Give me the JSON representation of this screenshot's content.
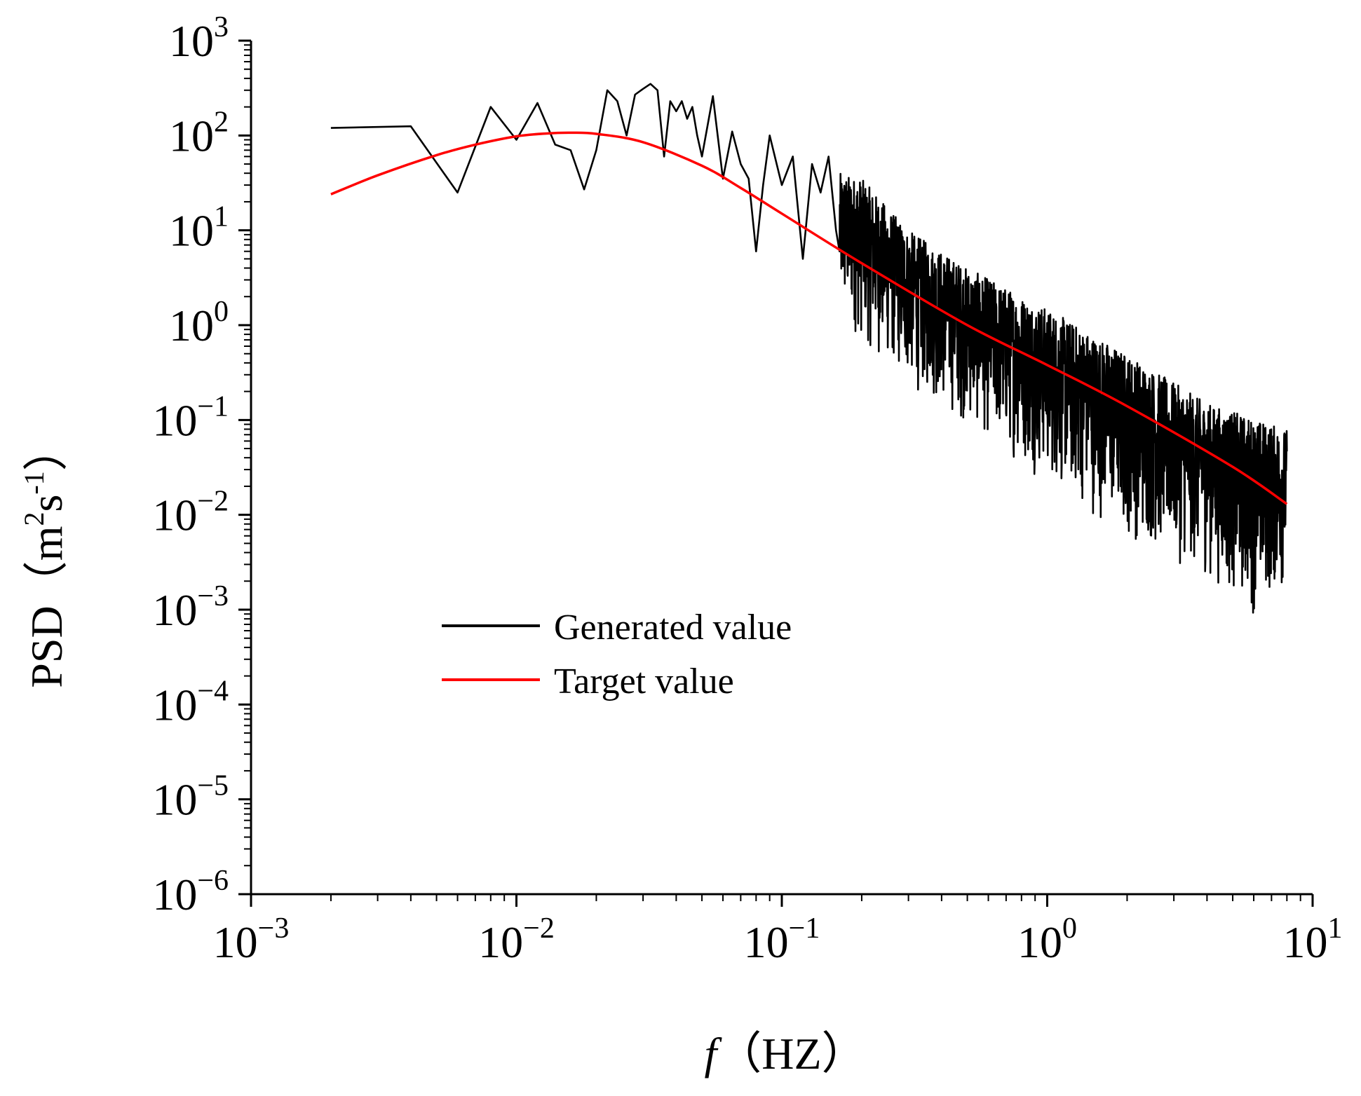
{
  "chart_data": {
    "type": "line",
    "xlabel": {
      "italic": "f",
      "rest": "（HZ）"
    },
    "ylabel": {
      "main": "PSD（m",
      "sup1": "2",
      "mid": "s",
      "sup2": "-1",
      "end": "）"
    },
    "xscale": "log",
    "yscale": "log",
    "xlim": [
      0.001,
      10
    ],
    "ylim": [
      1e-06,
      1000
    ],
    "x_ticks": [
      {
        "base": "10",
        "exp": "−3"
      },
      {
        "base": "10",
        "exp": "−2"
      },
      {
        "base": "10",
        "exp": "−1"
      },
      {
        "base": "10",
        "exp": "0"
      },
      {
        "base": "10",
        "exp": "1"
      }
    ],
    "y_ticks": [
      {
        "base": "10",
        "exp": "−6"
      },
      {
        "base": "10",
        "exp": "−5"
      },
      {
        "base": "10",
        "exp": "−4"
      },
      {
        "base": "10",
        "exp": "−3"
      },
      {
        "base": "10",
        "exp": "−2"
      },
      {
        "base": "10",
        "exp": "−1"
      },
      {
        "base": "10",
        "exp": "0"
      },
      {
        "base": "10",
        "exp": "1"
      },
      {
        "base": "10",
        "exp": "2"
      },
      {
        "base": "10",
        "exp": "3"
      }
    ],
    "legend": {
      "placement": "center-left",
      "entries": [
        {
          "label": "Generated value",
          "color": "#000000"
        },
        {
          "label": "Target value",
          "color": "#ff0000"
        }
      ]
    },
    "grid": false,
    "series": [
      {
        "name": "Generated value",
        "color": "#000000",
        "x": [
          0.002,
          0.004,
          0.006,
          0.008,
          0.01,
          0.012,
          0.014,
          0.016,
          0.018,
          0.02,
          0.022,
          0.024,
          0.026,
          0.028,
          0.03,
          0.032,
          0.034,
          0.036,
          0.038,
          0.04,
          0.042,
          0.044,
          0.046,
          0.048,
          0.05,
          0.055,
          0.06,
          0.065,
          0.07,
          0.075,
          0.08,
          0.085,
          0.09,
          0.1,
          0.11,
          0.12,
          0.13,
          0.14,
          0.15,
          0.16,
          0.165
        ],
        "y": [
          120,
          125,
          25,
          200,
          90,
          220,
          80,
          70,
          27,
          70,
          300,
          230,
          100,
          270,
          310,
          350,
          300,
          60,
          230,
          180,
          230,
          150,
          200,
          100,
          60,
          260,
          35,
          110,
          50,
          35,
          6,
          30,
          100,
          30,
          60,
          5,
          50,
          25,
          60,
          10,
          6
        ],
        "noise_tail": {
          "x_start": 0.165,
          "x_end": 8,
          "upper_envelope": [
            [
              0.165,
              40
            ],
            [
              0.2,
              35
            ],
            [
              0.3,
              10
            ],
            [
              0.5,
              4
            ],
            [
              1,
              1.5
            ],
            [
              2,
              0.5
            ],
            [
              4,
              0.15
            ],
            [
              8,
              0.08
            ]
          ],
          "lower_envelope": [
            [
              0.165,
              1
            ],
            [
              0.3,
              0.2
            ],
            [
              0.5,
              0.08
            ],
            [
              1,
              0.02
            ],
            [
              2,
              0.005
            ],
            [
              4,
              0.002
            ],
            [
              6,
              0.0008
            ],
            [
              8,
              0.0015
            ]
          ]
        }
      },
      {
        "name": "Target value",
        "color": "#ff0000",
        "x": [
          0.002,
          0.003,
          0.005,
          0.007,
          0.01,
          0.013,
          0.016,
          0.02,
          0.03,
          0.05,
          0.07,
          0.1,
          0.2,
          0.5,
          1,
          2,
          5,
          8
        ],
        "y": [
          24,
          38,
          62,
          80,
          98,
          105,
          107,
          104,
          85,
          48,
          28,
          15,
          4.5,
          1.0,
          0.38,
          0.14,
          0.032,
          0.013
        ]
      }
    ]
  }
}
